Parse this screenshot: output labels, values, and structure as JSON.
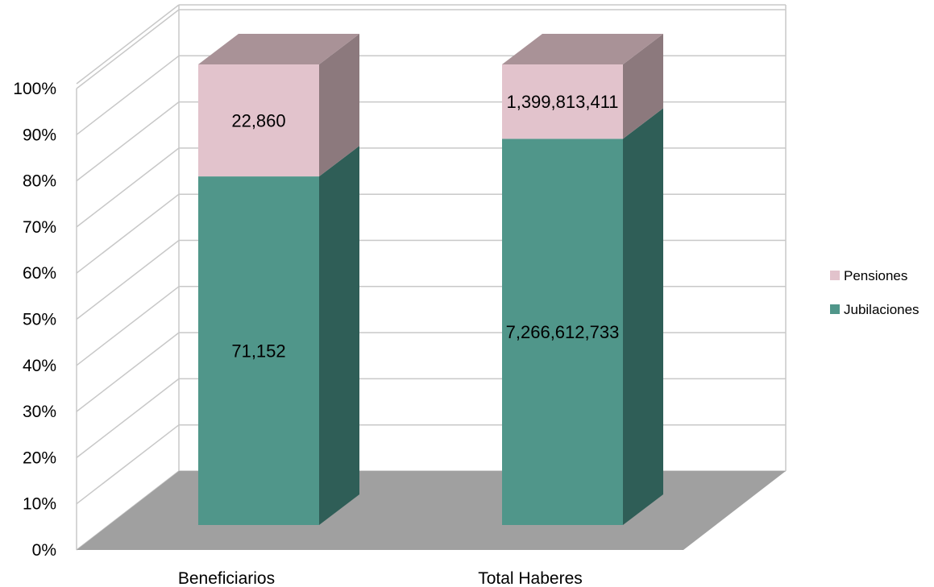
{
  "chart_data": {
    "type": "bar",
    "stacked": "percent",
    "three_d": true,
    "categories": [
      "Beneficiarios",
      "Total Haberes"
    ],
    "series": [
      {
        "name": "Jubilaciones",
        "values": [
          71152,
          7266612733
        ],
        "labels": [
          "71,152",
          "7,266,612,733"
        ]
      },
      {
        "name": "Pensiones",
        "values": [
          22860,
          1399813411
        ],
        "labels": [
          "22,860",
          "1,399,813,411"
        ]
      }
    ],
    "ylim": [
      0,
      100
    ],
    "yticks": [
      "0%",
      "10%",
      "20%",
      "30%",
      "40%",
      "50%",
      "60%",
      "70%",
      "80%",
      "90%",
      "100%"
    ],
    "grid": true,
    "legend_position": "right",
    "colors": {
      "Jubilaciones": {
        "front": "#50968A",
        "side": "#2F5E57",
        "top": "#3F7A70"
      },
      "Pensiones": {
        "front": "#E2C3CC",
        "side": "#8C797D",
        "top": "#A99297"
      },
      "floor": "#A0A0A0",
      "grid": "#C8C8C8"
    }
  }
}
